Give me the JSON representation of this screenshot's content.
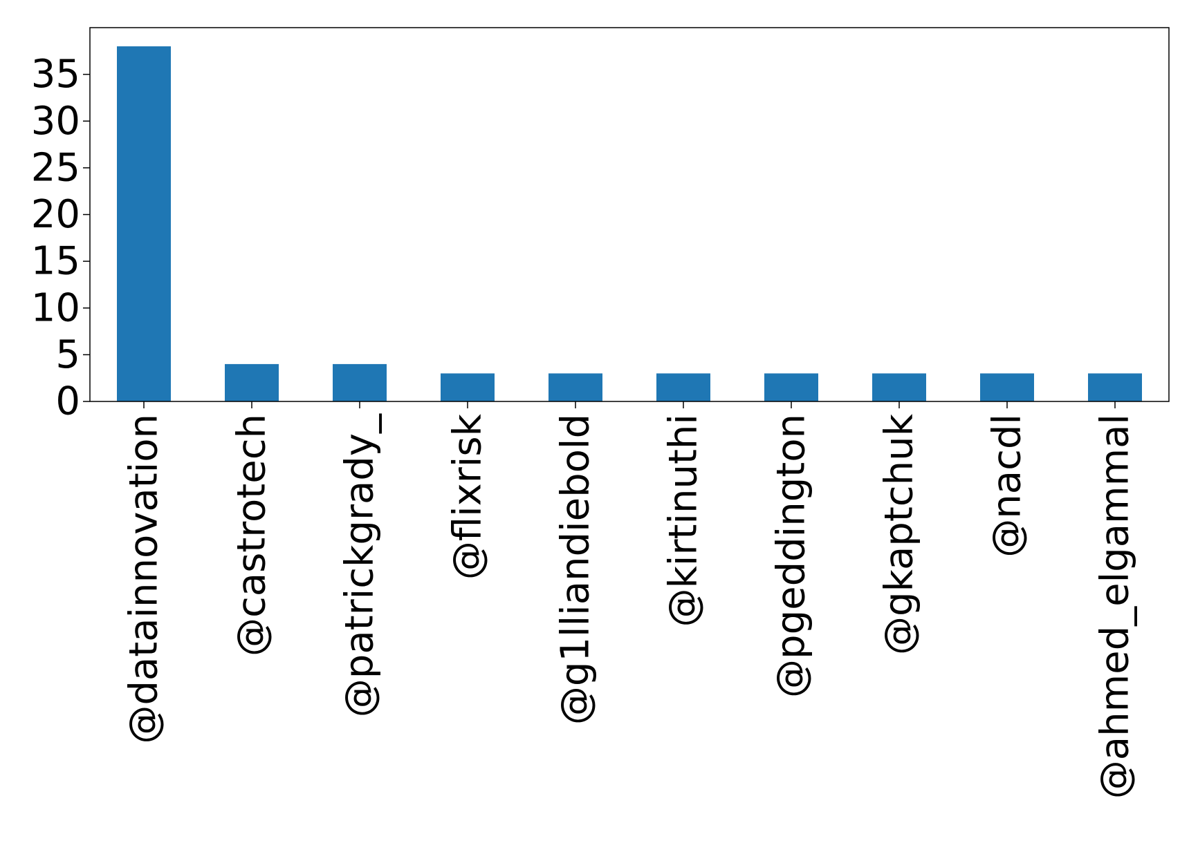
{
  "chart_data": {
    "type": "bar",
    "categories": [
      "@datainnovation",
      "@castrotech",
      "@patrickgrady_",
      "@flixrisk",
      "@g1lliandiebold",
      "@kirtinuthi",
      "@pgeddington",
      "@gkaptchuk",
      "@nacdl",
      "@ahmed_elgammal"
    ],
    "values": [
      38,
      4,
      4,
      3,
      3,
      3,
      3,
      3,
      3,
      3
    ],
    "ylim": [
      0,
      40
    ],
    "yticks": [
      0,
      5,
      10,
      15,
      20,
      25,
      30,
      35
    ],
    "title": "",
    "xlabel": "",
    "ylabel": "",
    "bar_color": "#1f77b4",
    "grid": false,
    "legend": "none"
  }
}
